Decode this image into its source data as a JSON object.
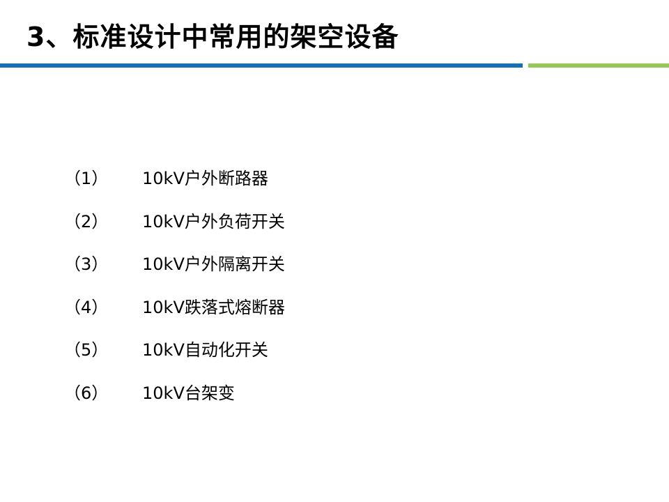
{
  "title": "3、标准设计中常用的架空设备",
  "colors": {
    "bar_blue": "#1570b7",
    "bar_green": "#96c858"
  },
  "items": [
    {
      "num": "（1）",
      "text": "10kV户外断路器"
    },
    {
      "num": "（2）",
      "text": "10kV户外负荷开关"
    },
    {
      "num": "（3）",
      "text": "10kV户外隔离开关"
    },
    {
      "num": "（4）",
      "text": "10kV跌落式熔断器"
    },
    {
      "num": "（5）",
      "text": "10kV自动化开关"
    },
    {
      "num": "（6）",
      "text": "10kV台架变"
    }
  ]
}
